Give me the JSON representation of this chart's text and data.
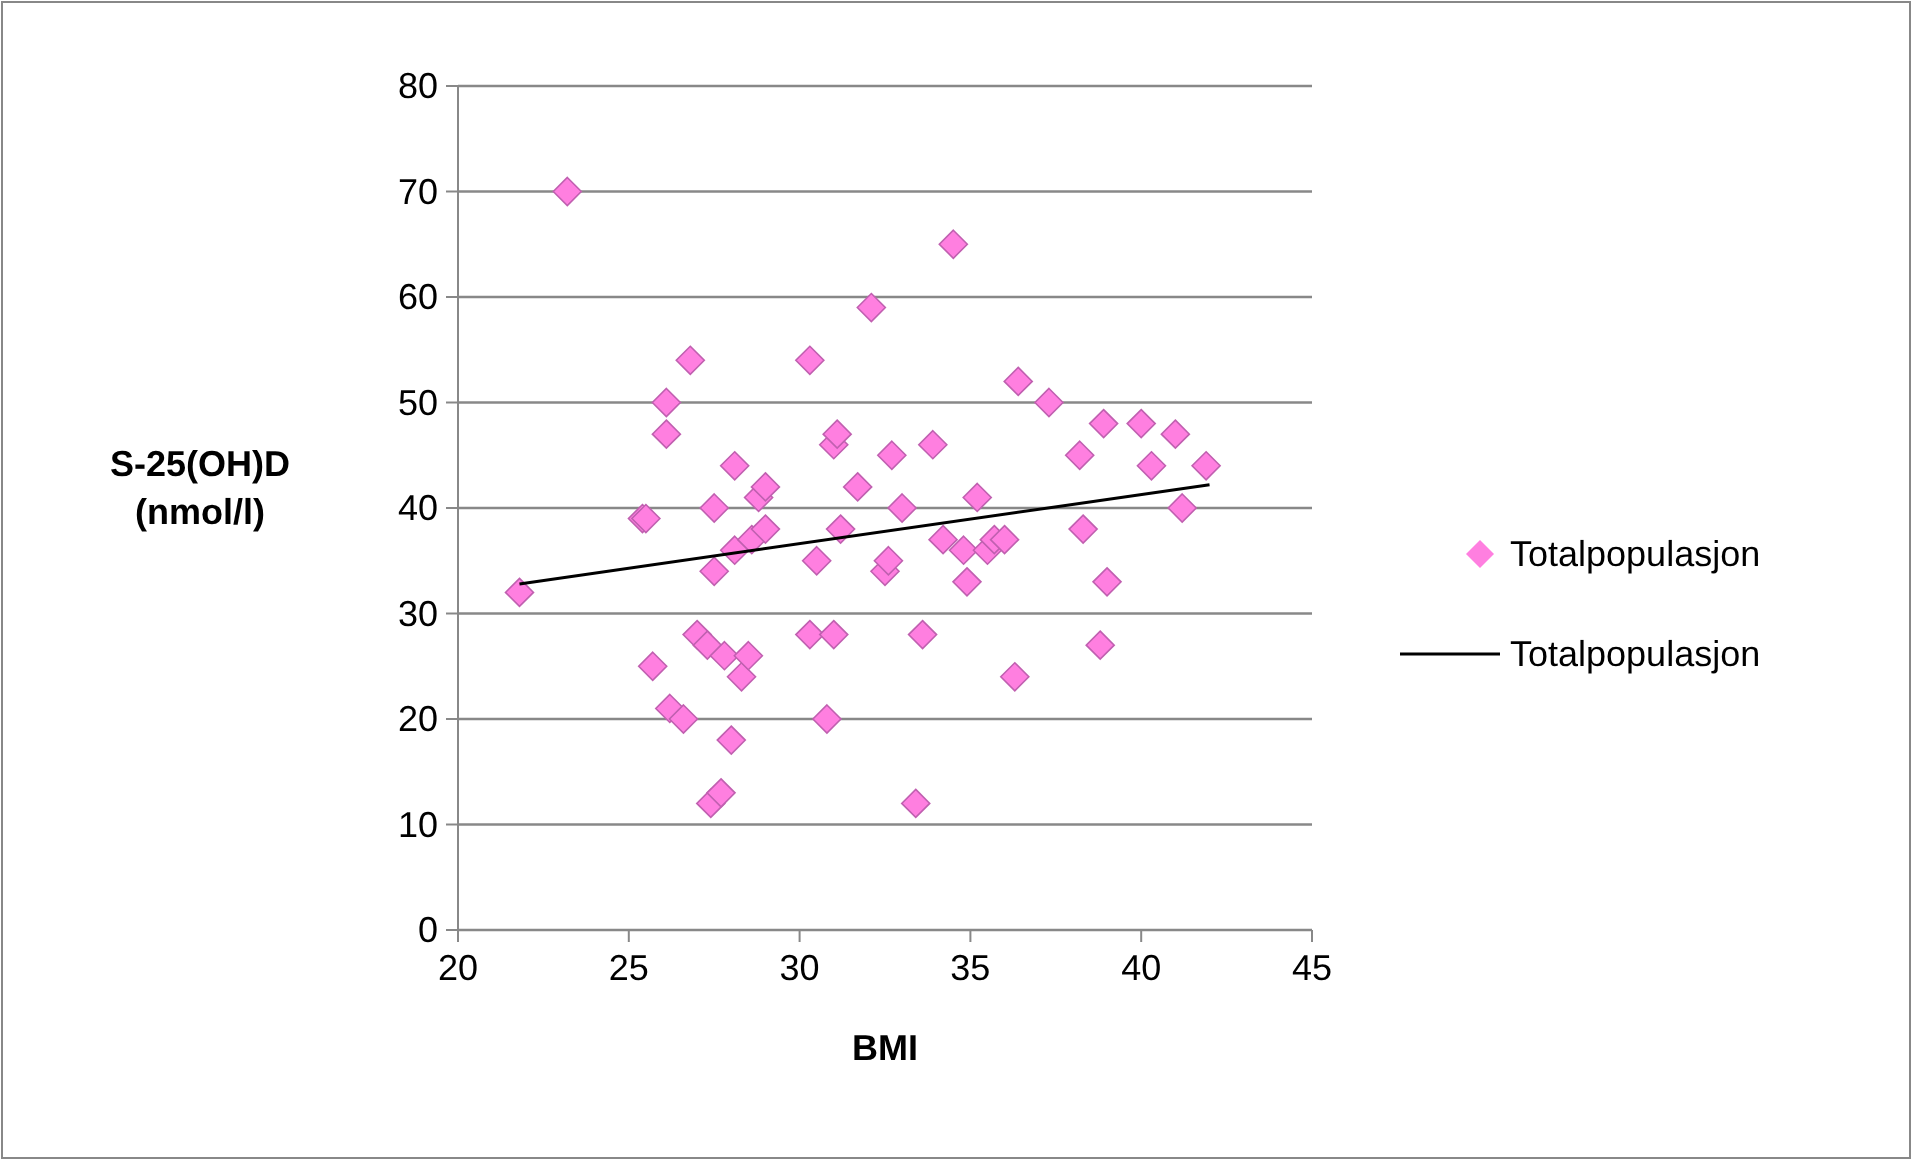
{
  "chart_data": {
    "type": "scatter",
    "xlabel": "BMI",
    "ylabel": "S-25(OH)D\n(nmol/l)",
    "xlim": [
      20,
      45
    ],
    "xticks": [
      20,
      25,
      30,
      35,
      40,
      45
    ],
    "ylim": [
      0,
      80
    ],
    "yticks": [
      0,
      10,
      20,
      30,
      40,
      50,
      60,
      70,
      80
    ],
    "grid": "y",
    "legend": "right",
    "series": [
      {
        "name": "Totalpopulasjon",
        "marker": "diamond",
        "color": "#ff7fe0",
        "x": [
          23.2,
          21.8,
          25.4,
          25.5,
          25.7,
          26.1,
          26.1,
          26.2,
          26.6,
          26.8,
          27,
          27.3,
          27.4,
          27.5,
          27.5,
          27.7,
          27.8,
          28,
          28.1,
          28.1,
          28.3,
          28.5,
          28.6,
          28.8,
          29,
          29,
          30.3,
          30.3,
          30.5,
          30.8,
          31,
          31,
          31.1,
          31.2,
          31.7,
          32.1,
          32.5,
          32.6,
          32.7,
          33,
          33.4,
          33.6,
          33.9,
          34.2,
          34.5,
          34.8,
          34.9,
          35.2,
          35.5,
          35.7,
          36,
          36.3,
          36.4,
          37.3,
          38.2,
          38.3,
          38.8,
          38.9,
          39,
          40,
          40.3,
          41,
          41.2,
          41.9
        ],
        "values": [
          70,
          32,
          39,
          39,
          25,
          50,
          47,
          21,
          20,
          54,
          28,
          27,
          12,
          34,
          40,
          13,
          26,
          18,
          44,
          36,
          24,
          26,
          37,
          41,
          42,
          38,
          54,
          28,
          35,
          20,
          28,
          46,
          47,
          38,
          42,
          59,
          34,
          35,
          45,
          40,
          12,
          28,
          46,
          37,
          65,
          36,
          33,
          41,
          36,
          37,
          37,
          24,
          52,
          50,
          45,
          38,
          27,
          48,
          33,
          48,
          44,
          47,
          40,
          44
        ]
      },
      {
        "name": "Totalpopulasjon",
        "type": "line",
        "color": "#000000",
        "x": [
          21.8,
          42
        ],
        "values": [
          32.8,
          42.2
        ]
      }
    ]
  }
}
